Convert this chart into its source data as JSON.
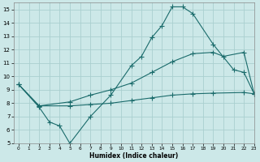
{
  "xlabel": "Humidex (Indice chaleur)",
  "background_color": "#cce8e8",
  "grid_color": "#aacfcf",
  "line_color": "#1a6b6b",
  "xlim": [
    -0.5,
    23
  ],
  "ylim": [
    5,
    15.5
  ],
  "xticks": [
    0,
    1,
    2,
    3,
    4,
    5,
    6,
    7,
    8,
    9,
    10,
    11,
    12,
    13,
    14,
    15,
    16,
    17,
    18,
    19,
    20,
    21,
    22,
    23
  ],
  "yticks": [
    5,
    6,
    7,
    8,
    9,
    10,
    11,
    12,
    13,
    14,
    15
  ],
  "line1_x": [
    0,
    2,
    3,
    4,
    5,
    7,
    9,
    11,
    12,
    13,
    14,
    15,
    16,
    17,
    19,
    21,
    22,
    23
  ],
  "line1_y": [
    9.4,
    7.7,
    6.6,
    6.3,
    5.0,
    7.0,
    8.6,
    10.8,
    11.5,
    12.9,
    13.8,
    15.2,
    15.2,
    14.7,
    12.4,
    10.5,
    10.3,
    8.7
  ],
  "line2_x": [
    0,
    2,
    5,
    7,
    9,
    11,
    13,
    15,
    17,
    19,
    20,
    22,
    23
  ],
  "line2_y": [
    9.4,
    7.8,
    8.1,
    8.6,
    9.0,
    9.5,
    10.3,
    11.1,
    11.7,
    11.8,
    11.5,
    11.8,
    8.7
  ],
  "line3_x": [
    0,
    2,
    5,
    7,
    9,
    11,
    13,
    15,
    17,
    19,
    22,
    23
  ],
  "line3_y": [
    9.4,
    7.8,
    7.8,
    7.9,
    8.0,
    8.2,
    8.4,
    8.6,
    8.7,
    8.75,
    8.8,
    8.7
  ]
}
